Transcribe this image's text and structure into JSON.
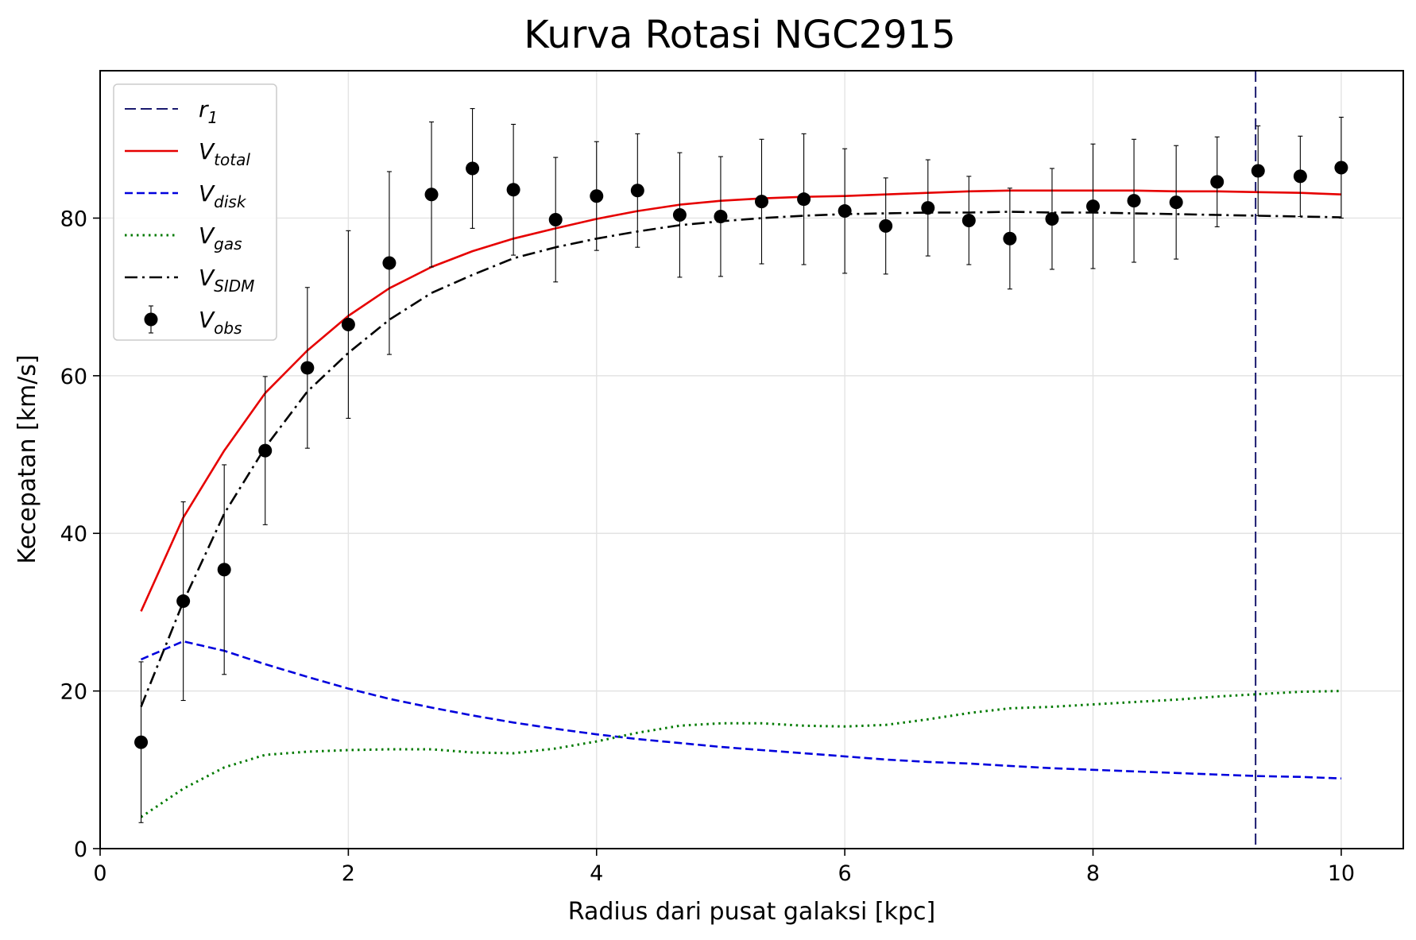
{
  "chart_data": {
    "type": "line",
    "title": "Kurva Rotasi NGC2915",
    "xlabel": "Radius dari pusat galaksi [kpc]",
    "ylabel": "Kecepatan [km/s]",
    "xlim": [
      0,
      10.5
    ],
    "ylim": [
      0,
      98.7
    ],
    "xticks": [
      0,
      2,
      4,
      6,
      8,
      10
    ],
    "yticks": [
      0,
      20,
      40,
      60,
      80
    ],
    "grid": true,
    "legend_position": "upper-left",
    "legend": [
      {
        "key": "r1",
        "main": "r",
        "sub": "1"
      },
      {
        "key": "vtotal",
        "main": "V",
        "sub": "total"
      },
      {
        "key": "vdisk",
        "main": "V",
        "sub": "disk"
      },
      {
        "key": "vgas",
        "main": "V",
        "sub": "gas"
      },
      {
        "key": "vsidm",
        "main": "V",
        "sub": "SIDM"
      },
      {
        "key": "vobs",
        "main": "V",
        "sub": "obs"
      }
    ],
    "vline": {
      "key": "r1",
      "x": 9.31,
      "color": "#1a1a6e"
    },
    "series": [
      {
        "key": "vtotal",
        "color": "#e60000",
        "x": [
          0.33,
          0.67,
          1.0,
          1.33,
          1.67,
          2.0,
          2.33,
          2.67,
          3.0,
          3.33,
          3.67,
          4.0,
          4.33,
          4.67,
          5.0,
          5.33,
          5.67,
          6.0,
          6.33,
          6.67,
          7.0,
          7.33,
          7.67,
          8.0,
          8.33,
          8.67,
          9.0,
          9.33,
          9.67,
          10.0
        ],
        "y": [
          30.1,
          42.0,
          50.5,
          57.8,
          63.2,
          67.6,
          71.1,
          73.8,
          75.8,
          77.4,
          78.7,
          79.9,
          80.9,
          81.7,
          82.2,
          82.5,
          82.7,
          82.8,
          83.0,
          83.2,
          83.4,
          83.5,
          83.5,
          83.5,
          83.5,
          83.4,
          83.4,
          83.3,
          83.2,
          83.0
        ]
      },
      {
        "key": "vdisk",
        "color": "#0000dd",
        "x": [
          0.33,
          0.67,
          1.0,
          1.33,
          1.67,
          2.0,
          2.33,
          2.67,
          3.0,
          3.33,
          3.67,
          4.0,
          4.33,
          4.67,
          5.0,
          5.33,
          5.67,
          6.0,
          6.33,
          6.67,
          7.0,
          7.33,
          7.67,
          8.0,
          8.33,
          8.67,
          9.0,
          9.33,
          9.67,
          10.0
        ],
        "y": [
          24.0,
          26.3,
          25.1,
          23.4,
          21.8,
          20.3,
          19.0,
          17.9,
          16.9,
          16.0,
          15.2,
          14.5,
          13.9,
          13.4,
          12.9,
          12.5,
          12.1,
          11.7,
          11.3,
          11.0,
          10.8,
          10.5,
          10.2,
          10.0,
          9.8,
          9.6,
          9.4,
          9.2,
          9.1,
          8.9
        ]
      },
      {
        "key": "vgas",
        "color": "#007a00",
        "x": [
          0.33,
          0.67,
          1.0,
          1.33,
          1.67,
          2.0,
          2.33,
          2.67,
          3.0,
          3.33,
          3.67,
          4.0,
          4.33,
          4.67,
          5.0,
          5.33,
          5.67,
          6.0,
          6.33,
          6.67,
          7.0,
          7.33,
          7.67,
          8.0,
          8.33,
          8.67,
          9.0,
          9.33,
          9.67,
          10.0
        ],
        "y": [
          4.0,
          7.6,
          10.3,
          11.9,
          12.3,
          12.5,
          12.6,
          12.6,
          12.2,
          12.1,
          12.7,
          13.6,
          14.7,
          15.6,
          15.9,
          15.9,
          15.6,
          15.5,
          15.7,
          16.4,
          17.2,
          17.8,
          18.0,
          18.3,
          18.6,
          18.9,
          19.3,
          19.6,
          19.9,
          20.0
        ]
      },
      {
        "key": "vsidm",
        "color": "#000000",
        "x": [
          0.33,
          0.67,
          1.0,
          1.33,
          1.67,
          2.0,
          2.33,
          2.67,
          3.0,
          3.33,
          3.67,
          4.0,
          4.33,
          4.67,
          5.0,
          5.33,
          5.67,
          6.0,
          6.33,
          6.67,
          7.0,
          7.33,
          7.67,
          8.0,
          8.33,
          8.67,
          9.0,
          9.33,
          9.67,
          10.0
        ],
        "y": [
          18.0,
          31.3,
          42.5,
          50.9,
          58.0,
          62.9,
          67.1,
          70.5,
          72.8,
          74.9,
          76.3,
          77.4,
          78.3,
          79.1,
          79.6,
          80.0,
          80.3,
          80.5,
          80.6,
          80.7,
          80.7,
          80.8,
          80.7,
          80.7,
          80.6,
          80.5,
          80.4,
          80.3,
          80.2,
          80.1
        ]
      }
    ],
    "observations": {
      "key": "vobs",
      "color": "#000000",
      "x": [
        0.33,
        0.67,
        1.0,
        1.33,
        1.67,
        2.0,
        2.33,
        2.67,
        3.0,
        3.33,
        3.67,
        4.0,
        4.33,
        4.67,
        5.0,
        5.33,
        5.67,
        6.0,
        6.33,
        6.67,
        7.0,
        7.33,
        7.67,
        8.0,
        8.33,
        8.67,
        9.0,
        9.33,
        9.67,
        10.0
      ],
      "y": [
        13.5,
        31.4,
        35.4,
        50.5,
        61.0,
        66.5,
        74.3,
        83.0,
        86.3,
        83.6,
        79.8,
        82.8,
        83.5,
        80.4,
        80.2,
        82.1,
        82.4,
        80.9,
        79.0,
        81.3,
        79.7,
        77.4,
        79.9,
        81.5,
        82.2,
        82.0,
        84.6,
        86.0,
        85.3,
        86.4
      ],
      "yerr": [
        10.2,
        12.6,
        13.3,
        9.4,
        10.2,
        11.9,
        11.6,
        9.2,
        7.6,
        8.3,
        7.9,
        6.9,
        7.2,
        7.9,
        7.6,
        7.9,
        8.3,
        7.9,
        6.1,
        6.1,
        5.6,
        6.4,
        6.4,
        7.9,
        7.8,
        7.2,
        5.7,
        5.7,
        5.1,
        6.4
      ]
    }
  }
}
